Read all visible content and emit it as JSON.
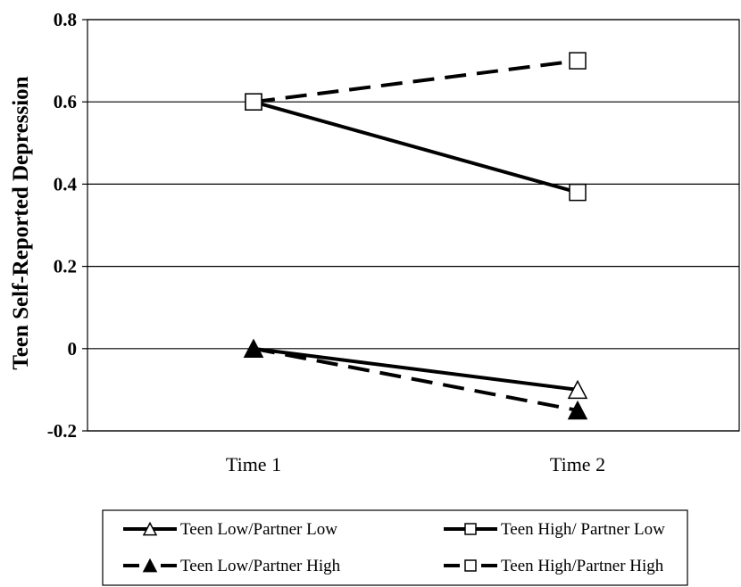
{
  "chart_data": {
    "type": "line",
    "title": "",
    "xlabel": "",
    "ylabel": "Teen Self-Reported Depression",
    "categories": [
      "Time 1",
      "Time 2"
    ],
    "ylim": [
      -0.2,
      0.8
    ],
    "yticks": [
      -0.2,
      0,
      0.2,
      0.4,
      0.6,
      0.8
    ],
    "ytick_labels": [
      "-0.2",
      "0",
      "0.2",
      "0.4",
      "0.6",
      "0.8"
    ],
    "grid": "horizontal",
    "legend_placement": "bottom",
    "series": [
      {
        "name": "Teen Low/Partner Low",
        "values": [
          0.0,
          -0.1
        ],
        "line_style": "solid",
        "marker": "triangle",
        "marker_fill": "#ffffff",
        "color": "#000000"
      },
      {
        "name": "Teen High/ Partner Low",
        "values": [
          0.6,
          0.38
        ],
        "line_style": "solid",
        "marker": "square",
        "marker_fill": "#ffffff",
        "color": "#000000"
      },
      {
        "name": "Teen Low/Partner High",
        "values": [
          0.0,
          -0.15
        ],
        "line_style": "dashed",
        "marker": "triangle",
        "marker_fill": "#000000",
        "color": "#000000"
      },
      {
        "name": "Teen High/Partner High",
        "values": [
          0.6,
          0.7
        ],
        "line_style": "dashed",
        "marker": "square",
        "marker_fill": "#ffffff",
        "color": "#000000"
      }
    ]
  }
}
